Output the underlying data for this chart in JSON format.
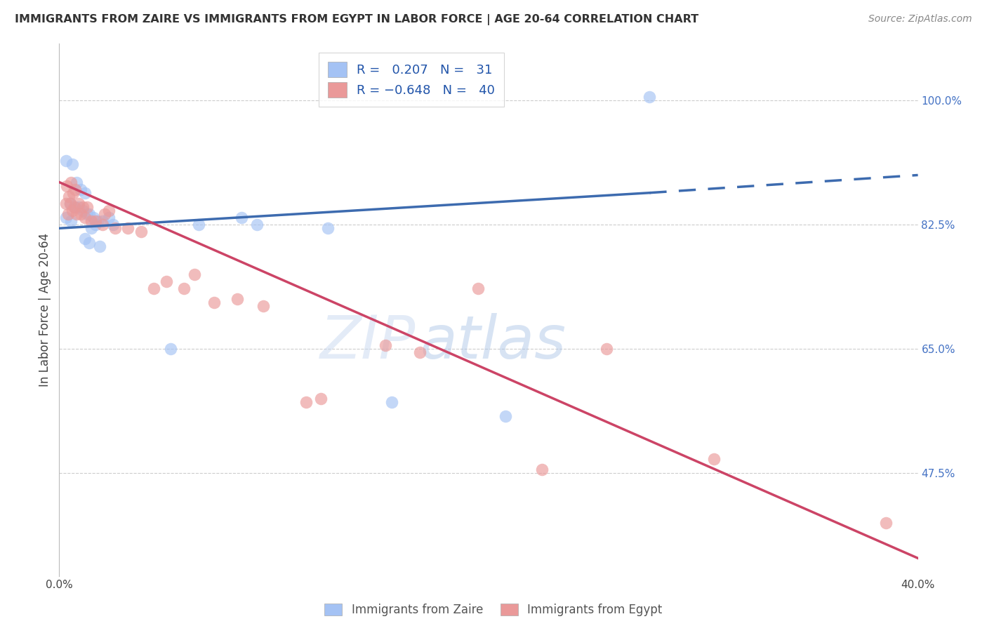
{
  "title": "IMMIGRANTS FROM ZAIRE VS IMMIGRANTS FROM EGYPT IN LABOR FORCE | AGE 20-64 CORRELATION CHART",
  "source": "Source: ZipAtlas.com",
  "ylabel": "In Labor Force | Age 20-64",
  "xlim": [
    0.0,
    40.0
  ],
  "ylim": [
    33.0,
    108.0
  ],
  "ytick_positions": [
    47.5,
    65.0,
    82.5,
    100.0
  ],
  "ytick_labels": [
    "47.5%",
    "65.0%",
    "82.5%",
    "100.0%"
  ],
  "legend_zaire_r": "0.207",
  "legend_zaire_n": "31",
  "legend_egypt_r": "-0.648",
  "legend_egypt_n": "40",
  "zaire_color": "#a4c2f4",
  "egypt_color": "#ea9999",
  "zaire_trend_color": "#3d6baf",
  "egypt_trend_color": "#cc4466",
  "zaire_scatter": [
    [
      0.3,
      91.5
    ],
    [
      0.6,
      91.0
    ],
    [
      0.3,
      83.5
    ],
    [
      0.55,
      83.0
    ],
    [
      0.8,
      88.5
    ],
    [
      1.0,
      87.5
    ],
    [
      1.2,
      87.0
    ],
    [
      0.5,
      85.5
    ],
    [
      0.7,
      85.0
    ],
    [
      0.9,
      85.0
    ],
    [
      1.1,
      84.5
    ],
    [
      1.3,
      84.0
    ],
    [
      1.4,
      84.0
    ],
    [
      1.6,
      83.5
    ],
    [
      1.8,
      83.0
    ],
    [
      2.0,
      83.0
    ],
    [
      2.3,
      83.5
    ],
    [
      1.5,
      82.0
    ],
    [
      1.7,
      82.5
    ],
    [
      2.5,
      82.5
    ],
    [
      1.2,
      80.5
    ],
    [
      1.4,
      80.0
    ],
    [
      1.9,
      79.5
    ],
    [
      5.2,
      65.0
    ],
    [
      6.5,
      82.5
    ],
    [
      8.5,
      83.5
    ],
    [
      9.2,
      82.5
    ],
    [
      12.5,
      82.0
    ],
    [
      15.5,
      57.5
    ],
    [
      20.8,
      55.5
    ],
    [
      27.5,
      100.5
    ]
  ],
  "egypt_scatter": [
    [
      0.35,
      88.0
    ],
    [
      0.55,
      88.5
    ],
    [
      0.75,
      87.5
    ],
    [
      0.45,
      86.5
    ],
    [
      0.65,
      87.0
    ],
    [
      0.3,
      85.5
    ],
    [
      0.5,
      85.5
    ],
    [
      0.7,
      85.0
    ],
    [
      0.9,
      85.5
    ],
    [
      1.1,
      85.0
    ],
    [
      1.3,
      85.0
    ],
    [
      0.4,
      84.0
    ],
    [
      0.6,
      84.5
    ],
    [
      0.8,
      84.0
    ],
    [
      1.0,
      84.0
    ],
    [
      1.2,
      83.5
    ],
    [
      1.5,
      83.0
    ],
    [
      1.7,
      83.0
    ],
    [
      2.1,
      84.0
    ],
    [
      2.3,
      84.5
    ],
    [
      2.0,
      82.5
    ],
    [
      2.6,
      82.0
    ],
    [
      3.2,
      82.0
    ],
    [
      3.8,
      81.5
    ],
    [
      4.4,
      73.5
    ],
    [
      5.0,
      74.5
    ],
    [
      5.8,
      73.5
    ],
    [
      6.3,
      75.5
    ],
    [
      7.2,
      71.5
    ],
    [
      8.3,
      72.0
    ],
    [
      9.5,
      71.0
    ],
    [
      11.5,
      57.5
    ],
    [
      12.2,
      58.0
    ],
    [
      15.2,
      65.5
    ],
    [
      16.8,
      64.5
    ],
    [
      19.5,
      73.5
    ],
    [
      25.5,
      65.0
    ],
    [
      22.5,
      48.0
    ],
    [
      30.5,
      49.5
    ],
    [
      38.5,
      40.5
    ]
  ],
  "zaire_trend_x0": 0.0,
  "zaire_trend_y0": 82.0,
  "zaire_trend_x1": 27.5,
  "zaire_trend_y1": 87.0,
  "zaire_dash_x1": 40.0,
  "zaire_dash_y1": 89.5,
  "egypt_trend_x0": 0.0,
  "egypt_trend_y0": 88.5,
  "egypt_trend_x1": 40.0,
  "egypt_trend_y1": 35.5,
  "background_color": "#ffffff",
  "grid_color": "#cccccc",
  "watermark_zip": "ZIP",
  "watermark_atlas": "atlas",
  "watermark_color_light": "#c8d8f0",
  "watermark_color_dark": "#b0c8e8"
}
